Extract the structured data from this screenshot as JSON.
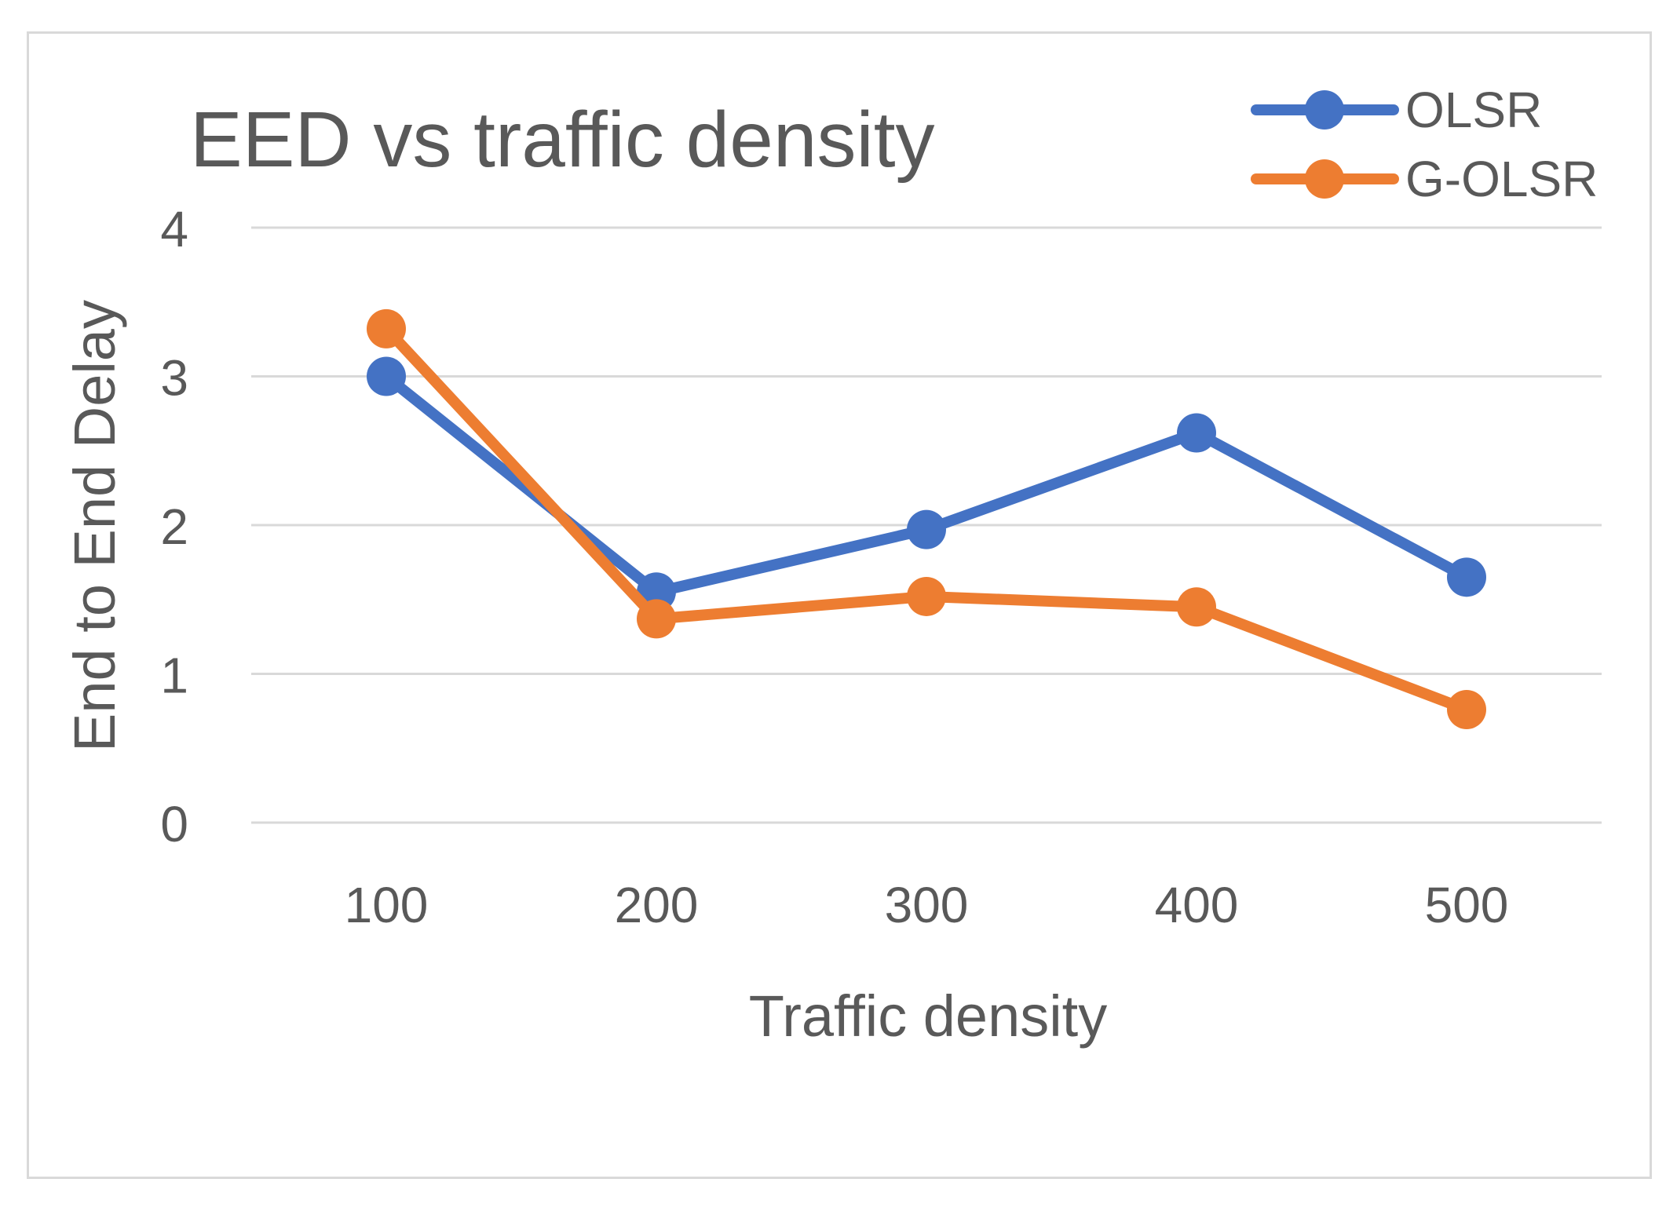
{
  "chart_data": {
    "type": "line",
    "title": "EED vs traffic density",
    "xlabel": "Traffic density",
    "ylabel": "End to End Delay",
    "categories": [
      "100",
      "200",
      "300",
      "400",
      "500"
    ],
    "ylim": [
      0,
      4
    ],
    "yticks": [
      "0",
      "1",
      "2",
      "3",
      "4"
    ],
    "grid": true,
    "legend": "top-right",
    "series": [
      {
        "name": "OLSR",
        "color": "#4472c4",
        "values": [
          3.0,
          1.55,
          1.97,
          2.62,
          1.65
        ]
      },
      {
        "name": "G-OLSR",
        "color": "#ed7d31",
        "values": [
          3.32,
          1.37,
          1.52,
          1.45,
          0.76
        ]
      }
    ]
  }
}
